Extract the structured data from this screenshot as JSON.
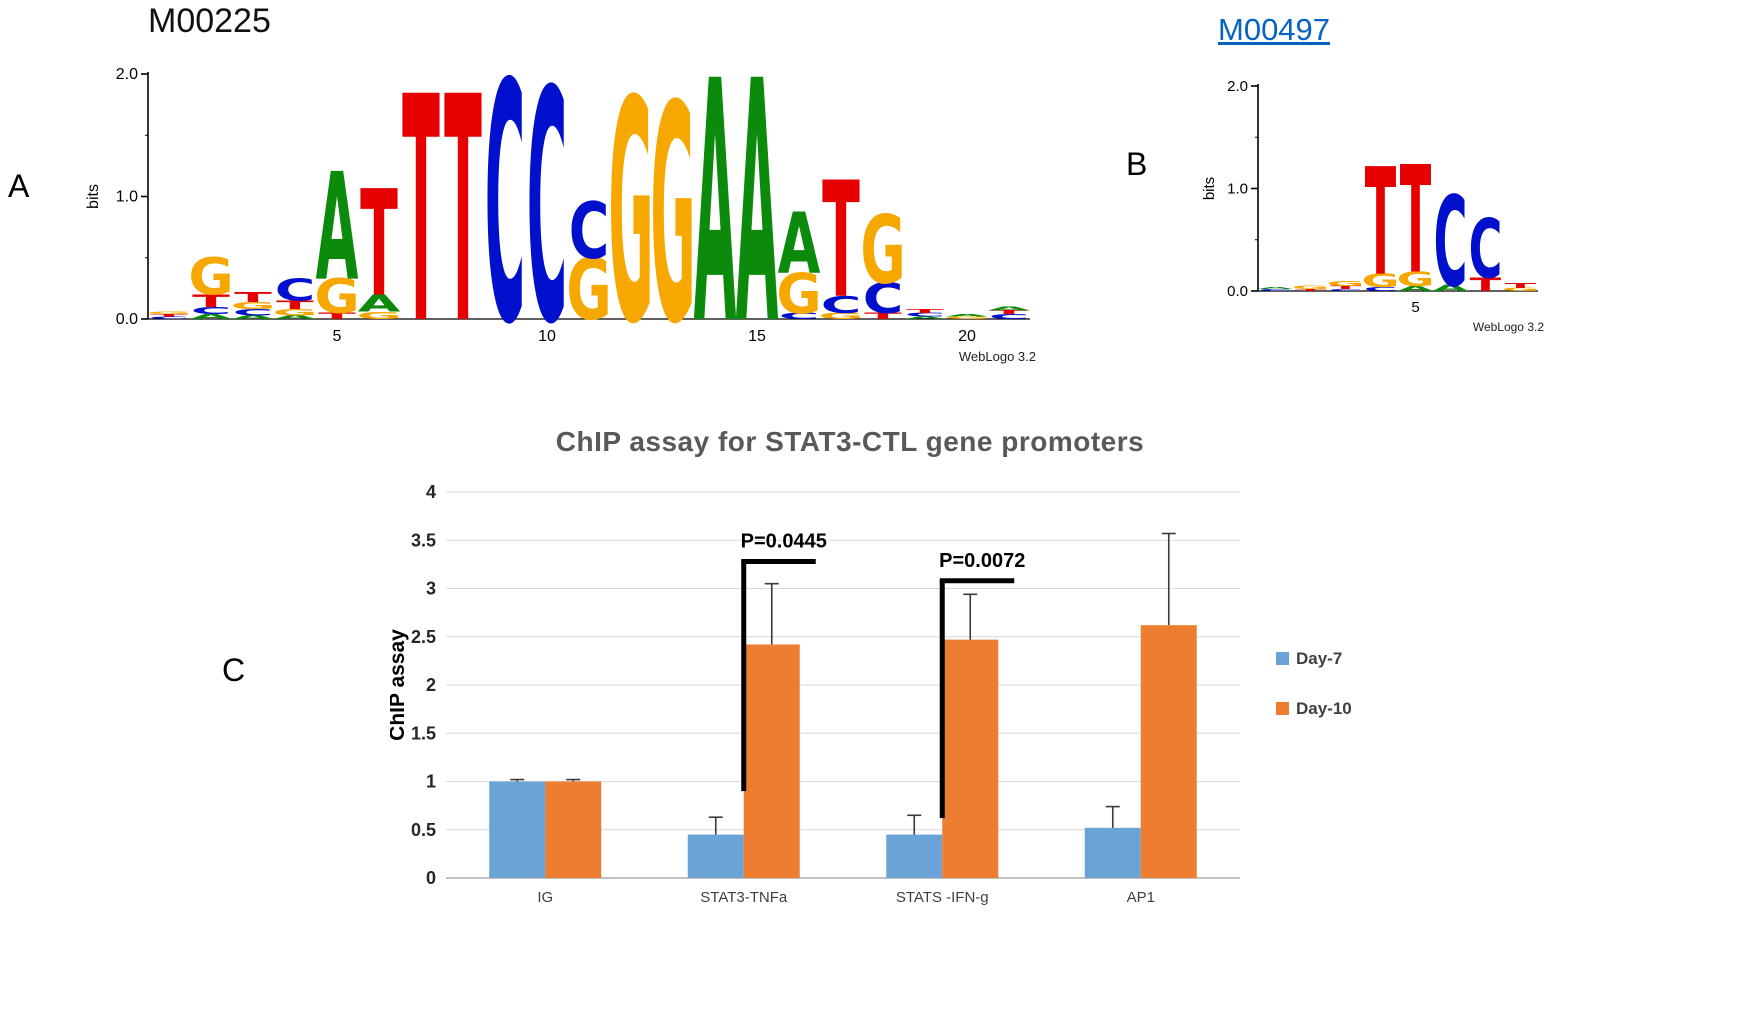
{
  "panelA": {
    "label": "A",
    "title": "M00225"
  },
  "panelB": {
    "label": "B",
    "title": "M00497",
    "link_color": "#0563c1"
  },
  "panelC": {
    "label": "C",
    "title": "ChIP assay for STAT3-CTL gene promoters"
  },
  "logo_colors": {
    "A": "#0c8a0c",
    "C": "#0010cc",
    "G": "#f6a800",
    "T": "#e60000"
  },
  "chart_data": [
    {
      "id": "panel-a-motif-logo",
      "type": "sequence-logo",
      "title": "M00225",
      "ylabel": "bits",
      "ylim": [
        0,
        2
      ],
      "yticks": [
        "0.0",
        "1.0",
        "2.0"
      ],
      "xticks": [
        5,
        10,
        15,
        20
      ],
      "watermark": "WebLogo 3.2",
      "positions": [
        [
          [
            "C",
            0.02
          ],
          [
            "T",
            0.02
          ],
          [
            "G",
            0.02
          ]
        ],
        [
          [
            "A",
            0.04
          ],
          [
            "C",
            0.06
          ],
          [
            "T",
            0.1
          ],
          [
            "G",
            0.3
          ]
        ],
        [
          [
            "A",
            0.03
          ],
          [
            "C",
            0.05
          ],
          [
            "G",
            0.06
          ],
          [
            "T",
            0.08
          ]
        ],
        [
          [
            "A",
            0.03
          ],
          [
            "G",
            0.05
          ],
          [
            "T",
            0.07
          ],
          [
            "C",
            0.18
          ]
        ],
        [
          [
            "T",
            0.05
          ],
          [
            "G",
            0.28
          ],
          [
            "A",
            0.88
          ]
        ],
        [
          [
            "G",
            0.06
          ],
          [
            "A",
            0.14
          ],
          [
            "T",
            0.87
          ]
        ],
        [
          [
            "T",
            1.85
          ]
        ],
        [
          [
            "T",
            1.85
          ]
        ],
        [
          [
            "C",
            1.96
          ]
        ],
        [
          [
            "C",
            1.9
          ]
        ],
        [
          [
            "G",
            0.5
          ],
          [
            "C",
            0.46
          ]
        ],
        [
          [
            "G",
            1.82
          ]
        ],
        [
          [
            "G",
            1.78
          ]
        ],
        [
          [
            "A",
            1.98
          ]
        ],
        [
          [
            "A",
            1.98
          ]
        ],
        [
          [
            "C",
            0.05
          ],
          [
            "G",
            0.33
          ],
          [
            "A",
            0.5
          ]
        ],
        [
          [
            "G",
            0.05
          ],
          [
            "C",
            0.14
          ],
          [
            "T",
            0.95
          ]
        ],
        [
          [
            "T",
            0.05
          ],
          [
            "C",
            0.25
          ],
          [
            "G",
            0.56
          ]
        ],
        [
          [
            "A",
            0.02
          ],
          [
            "C",
            0.03
          ],
          [
            "T",
            0.03
          ]
        ],
        [
          [
            "G",
            0.02
          ],
          [
            "A",
            0.02
          ]
        ],
        [
          [
            "C",
            0.04
          ],
          [
            "T",
            0.03
          ],
          [
            "A",
            0.03
          ]
        ]
      ]
    },
    {
      "id": "panel-b-motif-logo",
      "type": "sequence-logo",
      "title": "M00497",
      "ylabel": "bits",
      "ylim": [
        0,
        2
      ],
      "yticks": [
        "0.0",
        "1.0",
        "2.0"
      ],
      "xticks": [
        5
      ],
      "watermark": "WebLogo 3.2",
      "positions": [
        [
          [
            "C",
            0.02
          ],
          [
            "A",
            0.02
          ]
        ],
        [
          [
            "T",
            0.02
          ],
          [
            "G",
            0.03
          ]
        ],
        [
          [
            "C",
            0.02
          ],
          [
            "T",
            0.03
          ],
          [
            "G",
            0.05
          ]
        ],
        [
          [
            "C",
            0.04
          ],
          [
            "G",
            0.13
          ],
          [
            "T",
            1.05
          ]
        ],
        [
          [
            "A",
            0.05
          ],
          [
            "G",
            0.14
          ],
          [
            "T",
            1.05
          ]
        ],
        [
          [
            "A",
            0.06
          ],
          [
            "C",
            0.88
          ]
        ],
        [
          [
            "T",
            0.13
          ],
          [
            "C",
            0.58
          ]
        ],
        [
          [
            "G",
            0.03
          ],
          [
            "T",
            0.05
          ]
        ]
      ]
    },
    {
      "id": "chip-assay-bar-chart",
      "type": "bar",
      "title": "ChIP assay for STAT3-CTL gene promoters",
      "ylabel": "ChIP assay",
      "ylim": [
        0,
        4
      ],
      "ytick_step": 0.5,
      "grid": true,
      "legend_position": "right",
      "categories": [
        "IG",
        "STAT3-TNFa",
        "STATS -IFN-g",
        "AP1"
      ],
      "series": [
        {
          "name": "Day-7",
          "color": "#6ba3d6",
          "values": [
            1.0,
            0.45,
            0.45,
            0.52
          ],
          "errors_up": [
            0.02,
            0.18,
            0.2,
            0.22
          ]
        },
        {
          "name": "Day-10",
          "color": "#ed7d31",
          "values": [
            1.0,
            2.42,
            2.47,
            2.62
          ],
          "errors_up": [
            0.02,
            0.63,
            0.47,
            0.95
          ]
        }
      ],
      "annotations": [
        {
          "label": "P=0.0445",
          "group_index": 1,
          "y_bottom": 0.9,
          "y_top": 3.28
        },
        {
          "label": "P=0.0072",
          "group_index": 2,
          "y_bottom": 0.62,
          "y_top": 3.08
        }
      ]
    }
  ]
}
